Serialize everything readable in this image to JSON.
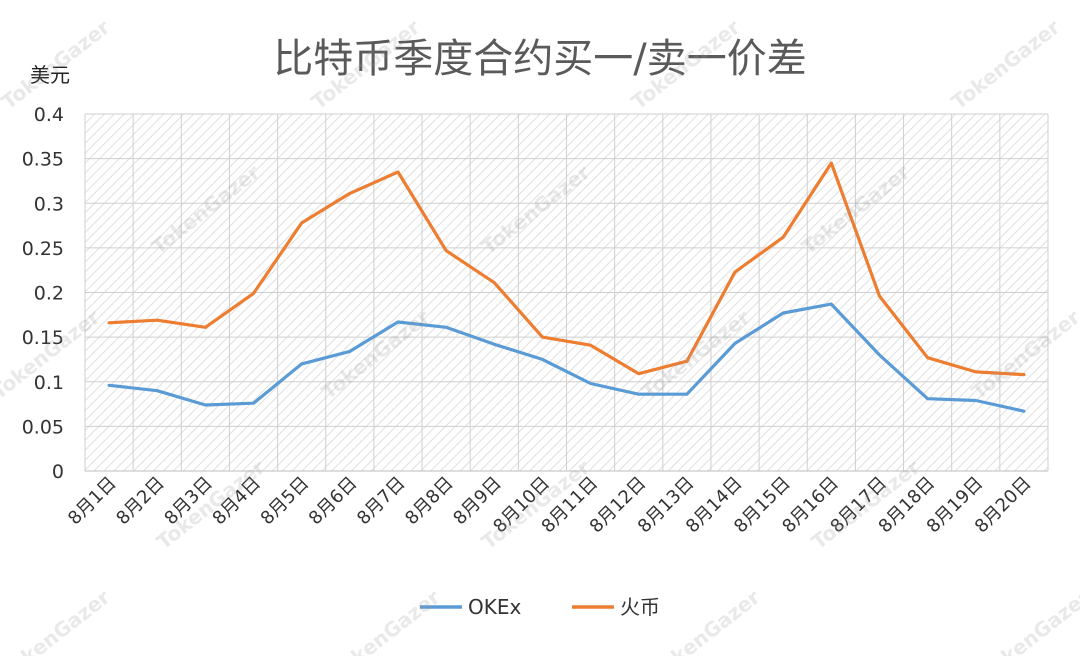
{
  "chart_data": {
    "type": "line",
    "title": "比特币季度合约买一/卖一价差",
    "ylabel": "美元",
    "ylim": [
      0,
      0.4
    ],
    "yticks": [
      "0",
      "0.05",
      "0.1",
      "0.15",
      "0.2",
      "0.25",
      "0.3",
      "0.35",
      "0.4"
    ],
    "categories": [
      "8月1日",
      "8月2日",
      "8月3日",
      "8月4日",
      "8月5日",
      "8月6日",
      "8月7日",
      "8月8日",
      "8月9日",
      "8月10日",
      "8月11日",
      "8月12日",
      "8月13日",
      "8月14日",
      "8月15日",
      "8月16日",
      "8月17日",
      "8月18日",
      "8月19日",
      "8月20日"
    ],
    "series": [
      {
        "name": "OKEx",
        "color": "#5b9bd5",
        "values": [
          0.096,
          0.09,
          0.074,
          0.076,
          0.12,
          0.134,
          0.167,
          0.161,
          0.142,
          0.125,
          0.098,
          0.086,
          0.086,
          0.143,
          0.177,
          0.187,
          0.13,
          0.081,
          0.079,
          0.067
        ]
      },
      {
        "name": "火币",
        "color": "#ed7d31",
        "values": [
          0.166,
          0.169,
          0.161,
          0.199,
          0.278,
          0.311,
          0.335,
          0.247,
          0.211,
          0.15,
          0.141,
          0.109,
          0.123,
          0.223,
          0.262,
          0.345,
          0.196,
          0.127,
          0.111,
          0.108
        ]
      }
    ],
    "grid": true,
    "legend": "bottom",
    "watermark": "TokenGazer"
  }
}
